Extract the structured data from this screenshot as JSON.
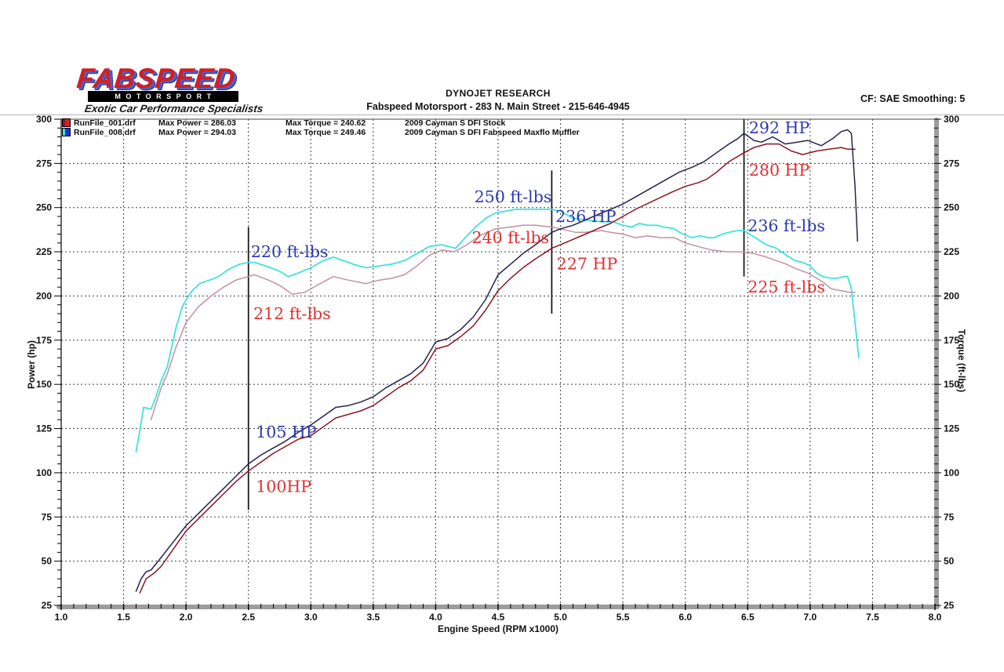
{
  "header": {
    "brand": "FABSPEED",
    "brand_sub": "MOTORSPORT",
    "brand_tagline": "Exotic Car Performance Specialists",
    "title_line1": "DYNOJET RESEARCH",
    "title_line2": "Fabspeed Motorsport - 283 N. Main Street - 215-646-4945",
    "correction_info": "CF: SAE  Smoothing: 5"
  },
  "legend": {
    "rows": [
      {
        "file": "RunFile_001.drf",
        "max_power": "Max Power = 286.03",
        "max_torque": "Max Torque = 240.62",
        "desc": "2009 Cayman S DFI Stock"
      },
      {
        "file": "RunFile_008.drf",
        "max_power": "Max Power = 294.03",
        "max_torque": "Max Torque = 249.46",
        "desc": "2009 Cayman S DFI Fabspeed Maxflo Muffler"
      }
    ]
  },
  "chart_data": {
    "type": "line",
    "xlabel": "Engine Speed (RPM x1000)",
    "ylabel_left": "Power (hp)",
    "ylabel_right": "Torque (ft-lbs)",
    "xlim": [
      1.0,
      8.0
    ],
    "ylim": [
      25,
      300
    ],
    "x_major_step": 0.5,
    "x_minor_step": 0.1,
    "y_major_step": 25,
    "y_minor_step": 5,
    "grid": "dashed",
    "colors": {
      "annotation_blue": "#2c39ad",
      "annotation_red": "#e12f2f",
      "grid": "#222222",
      "axis_bar": "#9c9c9c",
      "tick": "#111111"
    },
    "series": [
      {
        "name": "Stock Torque (ft-lbs)",
        "color": "#c4909c",
        "width": 1.5,
        "x": [
          1.72,
          1.8,
          1.85,
          1.92,
          2.0,
          2.1,
          2.2,
          2.3,
          2.4,
          2.5,
          2.55,
          2.66,
          2.75,
          2.85,
          2.95,
          3.05,
          3.18,
          3.3,
          3.44,
          3.55,
          3.65,
          3.75,
          3.85,
          3.95,
          4.05,
          4.15,
          4.25,
          4.35,
          4.48,
          4.6,
          4.7,
          4.8,
          4.93,
          5.0,
          5.12,
          5.2,
          5.33,
          5.4,
          5.5,
          5.6,
          5.7,
          5.8,
          5.91,
          6.0,
          6.1,
          6.21,
          6.33,
          6.47,
          6.55,
          6.65,
          6.81,
          6.9,
          6.98,
          7.1,
          7.17,
          7.25,
          7.32,
          7.36
        ],
        "y": [
          130,
          148,
          156,
          171,
          185,
          194,
          200,
          205,
          209,
          211,
          212,
          209,
          206,
          201,
          202,
          206,
          211,
          209,
          207,
          209,
          210,
          212,
          217,
          223,
          226,
          225,
          229,
          234,
          238,
          239,
          240,
          240,
          239,
          238,
          236,
          236,
          237,
          236,
          235,
          233,
          234,
          233,
          233,
          230,
          228,
          226,
          225,
          225,
          224,
          222,
          218,
          215,
          213,
          208,
          204,
          203,
          202,
          202
        ]
      },
      {
        "name": "Fabspeed Torque (ft-lbs)",
        "color": "#3fe3de",
        "width": 1.8,
        "x": [
          1.6,
          1.63,
          1.66,
          1.72,
          1.76,
          1.8,
          1.85,
          1.92,
          1.97,
          2.01,
          2.05,
          2.11,
          2.19,
          2.26,
          2.34,
          2.43,
          2.5,
          2.55,
          2.68,
          2.75,
          2.82,
          2.9,
          3.0,
          3.1,
          3.18,
          3.3,
          3.38,
          3.45,
          3.55,
          3.65,
          3.75,
          3.85,
          3.95,
          4.05,
          4.1,
          4.16,
          4.25,
          4.32,
          4.4,
          4.48,
          4.56,
          4.64,
          4.75,
          4.87,
          4.93,
          5.0,
          5.1,
          5.2,
          5.33,
          5.42,
          5.5,
          5.57,
          5.63,
          5.7,
          5.77,
          5.83,
          5.91,
          5.98,
          6.05,
          6.12,
          6.18,
          6.23,
          6.3,
          6.35,
          6.42,
          6.47,
          6.56,
          6.65,
          6.73,
          6.81,
          6.88,
          6.94,
          7.0,
          7.05,
          7.1,
          7.17,
          7.22,
          7.27,
          7.3,
          7.33,
          7.36,
          7.39
        ],
        "y": [
          112,
          124,
          137,
          136,
          143,
          152,
          160,
          182,
          194,
          199,
          203,
          207,
          209,
          211,
          215,
          218,
          219,
          219,
          216,
          214,
          211,
          213,
          216,
          220,
          222,
          219,
          217,
          216,
          217,
          218,
          220,
          224,
          228,
          229,
          228,
          227,
          234,
          239,
          244,
          247,
          248,
          249,
          249,
          249,
          249,
          248,
          244,
          243,
          242,
          242,
          240,
          239,
          241,
          240,
          240,
          239,
          238,
          235,
          233,
          234,
          233,
          233,
          235,
          236,
          237,
          237,
          233,
          229,
          227,
          223,
          220,
          219,
          217,
          213,
          211,
          210,
          210,
          211,
          211,
          204,
          185,
          165
        ]
      },
      {
        "name": "Stock Power (hp)",
        "color": "#8a1622",
        "width": 1.5,
        "x": [
          1.63,
          1.68,
          1.74,
          1.8,
          1.9,
          2.0,
          2.1,
          2.2,
          2.3,
          2.4,
          2.5,
          2.6,
          2.7,
          2.8,
          2.9,
          3.0,
          3.1,
          3.2,
          3.3,
          3.4,
          3.5,
          3.6,
          3.7,
          3.8,
          3.9,
          3.95,
          4.0,
          4.1,
          4.2,
          4.3,
          4.4,
          4.5,
          4.6,
          4.7,
          4.8,
          4.93,
          5.0,
          5.1,
          5.2,
          5.33,
          5.4,
          5.5,
          5.6,
          5.75,
          5.9,
          6.0,
          6.1,
          6.17,
          6.25,
          6.35,
          6.47,
          6.55,
          6.65,
          6.75,
          6.85,
          6.94,
          7.05,
          7.15,
          7.25,
          7.3,
          7.36
        ],
        "y": [
          32,
          40,
          43,
          47,
          57,
          67,
          74,
          81,
          88,
          95,
          101,
          106,
          111,
          115,
          119,
          121,
          126,
          131,
          133,
          135,
          138,
          143,
          148,
          152,
          158,
          164,
          170,
          172,
          177,
          183,
          192,
          203,
          210,
          216,
          221,
          227,
          229,
          232,
          235,
          239,
          241,
          245,
          249,
          254,
          259,
          262,
          264,
          266,
          270,
          276,
          281,
          284,
          286,
          286,
          282,
          280,
          282,
          283,
          284,
          283,
          283
        ]
      },
      {
        "name": "Fabspeed Power (hp)",
        "color": "#23234f",
        "width": 1.5,
        "x": [
          1.6,
          1.64,
          1.68,
          1.72,
          1.8,
          1.9,
          2.0,
          2.1,
          2.2,
          2.3,
          2.4,
          2.5,
          2.6,
          2.7,
          2.8,
          2.9,
          3.0,
          3.1,
          3.2,
          3.3,
          3.4,
          3.5,
          3.6,
          3.7,
          3.8,
          3.9,
          3.95,
          4.0,
          4.1,
          4.2,
          4.3,
          4.4,
          4.5,
          4.6,
          4.7,
          4.8,
          4.93,
          5.0,
          5.1,
          5.2,
          5.33,
          5.4,
          5.5,
          5.6,
          5.75,
          5.85,
          5.95,
          6.06,
          6.15,
          6.25,
          6.35,
          6.42,
          6.47,
          6.55,
          6.61,
          6.7,
          6.8,
          6.9,
          6.98,
          7.09,
          7.18,
          7.25,
          7.3,
          7.33,
          7.36,
          7.38
        ],
        "y": [
          33,
          40,
          44,
          45,
          52,
          61,
          70,
          77,
          84,
          91,
          98,
          105,
          110,
          114,
          118,
          123,
          127,
          132,
          137,
          138,
          140,
          143,
          148,
          152,
          156,
          162,
          168,
          174,
          176,
          181,
          188,
          198,
          212,
          218,
          224,
          229,
          236,
          238,
          240,
          243,
          247,
          249,
          252,
          256,
          262,
          266,
          270,
          273,
          276,
          281,
          286,
          289,
          292,
          288,
          287,
          290,
          286,
          287,
          288,
          285,
          289,
          293,
          294,
          292,
          262,
          231
        ]
      }
    ],
    "vlines": [
      {
        "x": 2.5,
        "y1": 79,
        "y2": 239
      },
      {
        "x": 4.93,
        "y1": 190,
        "y2": 271
      },
      {
        "x": 6.47,
        "y1": 211,
        "y2": 300
      }
    ],
    "annotations": [
      {
        "text": "220 ft-lbs",
        "color": "blue",
        "x": 2.52,
        "y": 222
      },
      {
        "text": "212 ft-lbs",
        "color": "red",
        "x": 2.54,
        "y": 187
      },
      {
        "text": "105 HP",
        "color": "blue",
        "x": 2.56,
        "y": 120
      },
      {
        "text": "100HP",
        "color": "red",
        "x": 2.56,
        "y": 89
      },
      {
        "text": "250 ft-lbs",
        "color": "blue",
        "x": 4.31,
        "y": 253
      },
      {
        "text": "240 ft-lbs",
        "color": "red",
        "x": 4.29,
        "y": 230
      },
      {
        "text": "236 HP",
        "color": "blue",
        "x": 4.96,
        "y": 242
      },
      {
        "text": "227 HP",
        "color": "red",
        "x": 4.97,
        "y": 215
      },
      {
        "text": "292 HP",
        "color": "blue",
        "x": 6.51,
        "y": 292
      },
      {
        "text": "280 HP",
        "color": "red",
        "x": 6.51,
        "y": 268
      },
      {
        "text": "236 ft-lbs",
        "color": "blue",
        "x": 6.5,
        "y": 236.5
      },
      {
        "text": "225 ft-lbs",
        "color": "red",
        "x": 6.5,
        "y": 202
      }
    ]
  }
}
